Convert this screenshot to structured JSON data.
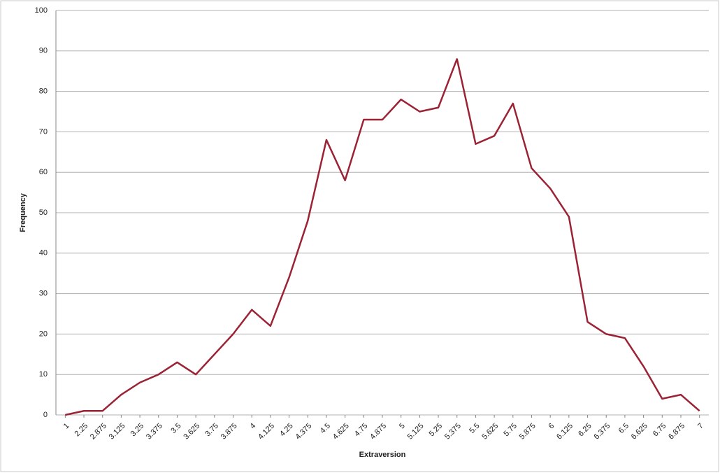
{
  "chart_data": {
    "type": "line",
    "x_label": "Extraversion",
    "y_label": "Frequency",
    "categories": [
      "1",
      "2.25",
      "2.875",
      "3.125",
      "3.25",
      "3.375",
      "3.5",
      "3.625",
      "3.75",
      "3.875",
      "4",
      "4.125",
      "4.25",
      "4.375",
      "4.5",
      "4.625",
      "4.75",
      "4.875",
      "5",
      "5.125",
      "5.25",
      "5.375",
      "5.5",
      "5.625",
      "5.75",
      "5.875",
      "6",
      "6.125",
      "6.25",
      "6.375",
      "6.5",
      "6.625",
      "6.75",
      "6.875",
      "7"
    ],
    "values": [
      0,
      1,
      1,
      5,
      8,
      10,
      13,
      10,
      15,
      20,
      26,
      22,
      34,
      48,
      68,
      58,
      73,
      73,
      78,
      75,
      76,
      88,
      67,
      69,
      77,
      61,
      56,
      49,
      23,
      20,
      19,
      12,
      4,
      5,
      1
    ],
    "color": "#9b2335",
    "ylim": [
      0,
      100
    ],
    "yticks": [
      0,
      10,
      20,
      30,
      40,
      50,
      60,
      70,
      80,
      90,
      100
    ],
    "grid": true
  }
}
